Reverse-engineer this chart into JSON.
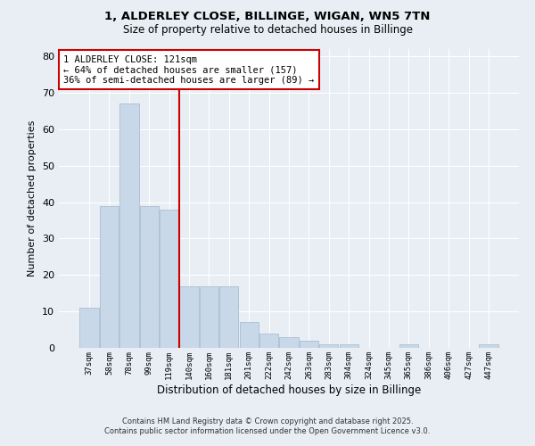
{
  "title1": "1, ALDERLEY CLOSE, BILLINGE, WIGAN, WN5 7TN",
  "title2": "Size of property relative to detached houses in Billinge",
  "xlabel": "Distribution of detached houses by size in Billinge",
  "ylabel": "Number of detached properties",
  "categories": [
    "37sqm",
    "58sqm",
    "78sqm",
    "99sqm",
    "119sqm",
    "140sqm",
    "160sqm",
    "181sqm",
    "201sqm",
    "222sqm",
    "242sqm",
    "263sqm",
    "283sqm",
    "304sqm",
    "324sqm",
    "345sqm",
    "365sqm",
    "386sqm",
    "406sqm",
    "427sqm",
    "447sqm"
  ],
  "values": [
    11,
    39,
    67,
    39,
    38,
    17,
    17,
    17,
    7,
    4,
    3,
    2,
    1,
    1,
    0,
    0,
    1,
    0,
    0,
    0,
    1
  ],
  "bar_color": "#c8d8e8",
  "bar_edge_color": "#a0b8cc",
  "vline_x": 4.5,
  "vline_color": "#cc0000",
  "annotation_text": "1 ALDERLEY CLOSE: 121sqm\n← 64% of detached houses are smaller (157)\n36% of semi-detached houses are larger (89) →",
  "annotation_box_color": "#ffffff",
  "annotation_box_edge": "#cc0000",
  "ylim": [
    0,
    82
  ],
  "yticks": [
    0,
    10,
    20,
    30,
    40,
    50,
    60,
    70,
    80
  ],
  "background_color": "#e8eef4",
  "footer1": "Contains HM Land Registry data © Crown copyright and database right 2025.",
  "footer2": "Contains public sector information licensed under the Open Government Licence v3.0."
}
